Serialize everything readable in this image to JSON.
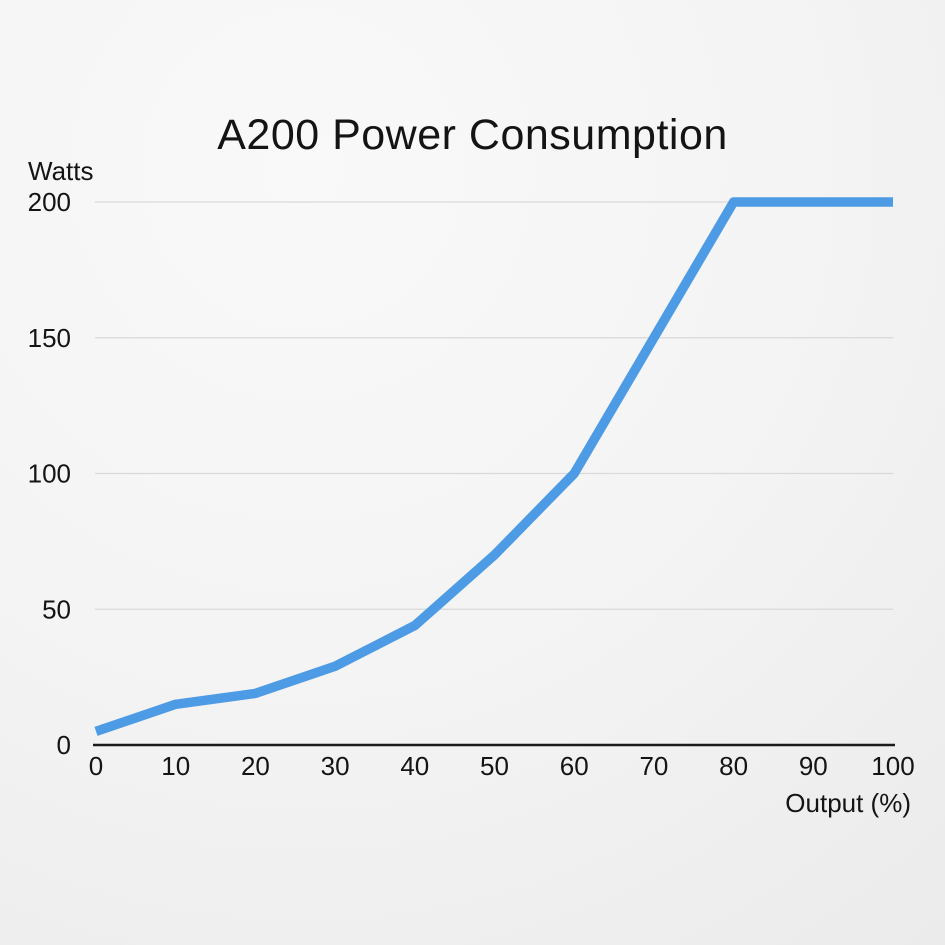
{
  "page": {
    "background_light": "#f9f9f9",
    "background_dark": "#e7e7e7"
  },
  "chart_data": {
    "type": "line",
    "title": "A200 Power Consumption",
    "xlabel": "Output (%)",
    "ylabel": "Watts",
    "x": [
      0,
      10,
      20,
      30,
      40,
      50,
      60,
      70,
      80,
      90,
      100
    ],
    "values": [
      5,
      15,
      19,
      29,
      44,
      70,
      100,
      150,
      200,
      200,
      200
    ],
    "xticks": [
      0,
      10,
      20,
      30,
      40,
      50,
      60,
      70,
      80,
      90,
      100
    ],
    "yticks": [
      0,
      50,
      100,
      150,
      200
    ],
    "xlim": [
      0,
      100
    ],
    "ylim": [
      0,
      200
    ],
    "grid": "horizontal",
    "legend": "none",
    "colors": {
      "line": "#4d9be5",
      "grid": "#d9d9d9",
      "axis": "#1b1b1b",
      "text": "#141414"
    }
  }
}
